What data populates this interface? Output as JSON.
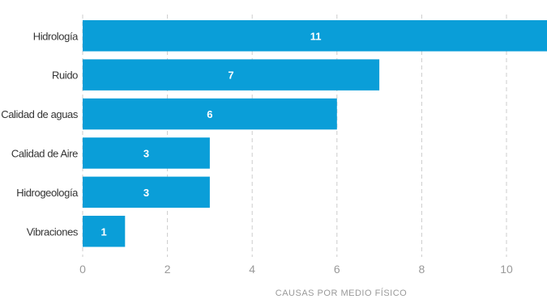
{
  "chart_data": {
    "type": "bar",
    "orientation": "horizontal",
    "categories": [
      "Hidrología",
      "Ruido",
      "Calidad de aguas",
      "Calidad de Aire",
      "Hidrogeología",
      "Vibraciones"
    ],
    "values": [
      11,
      7,
      6,
      3,
      3,
      1
    ],
    "data_labels": [
      "11",
      "7",
      "6",
      "3",
      "3",
      "1"
    ],
    "xlabel": "CAUSAS POR MEDIO FÍSICO",
    "ylabel": "",
    "title": "",
    "xlim": [
      0,
      11
    ],
    "xticks": [
      0,
      2,
      4,
      6,
      8,
      10
    ],
    "xtick_labels": [
      "0",
      "2",
      "4",
      "6",
      "8",
      "10"
    ],
    "grid": "vertical dashed",
    "legend": "none",
    "colors": {
      "bar": "#0a9ed8",
      "grid": "#cccccc",
      "axis_text": "#9a9a9a",
      "category_text": "#333333",
      "data_label": "#ffffff"
    }
  }
}
